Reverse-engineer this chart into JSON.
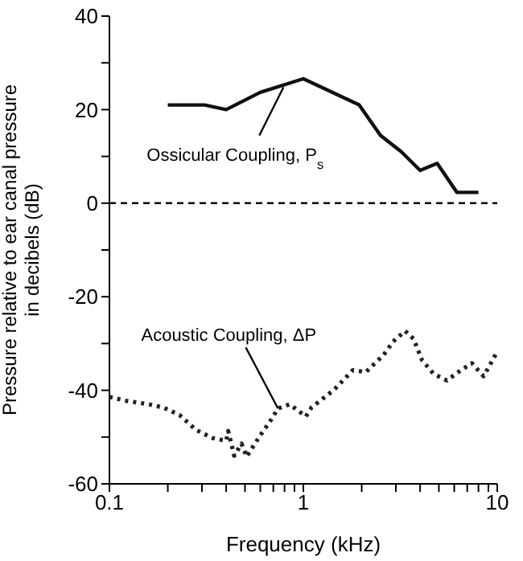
{
  "chart_data": {
    "type": "line",
    "xlabel": "Frequency (kHz)",
    "ylabel": "Pressure relative to ear canal pressure in decibels (dB)",
    "log": "x",
    "xlim": [
      0.1,
      10
    ],
    "ylim": [
      -60,
      40
    ],
    "xticks": [
      0.1,
      {
        "value": 0.2,
        "label": null
      },
      {
        "value": 0.3,
        "label": null
      },
      {
        "value": 0.4,
        "label": null
      },
      {
        "value": 0.5,
        "label": null
      },
      {
        "value": 0.6,
        "label": null
      },
      {
        "value": 0.7,
        "label": null
      },
      {
        "value": 0.8,
        "label": null
      },
      {
        "value": 0.9,
        "label": null
      },
      1,
      {
        "value": 2,
        "label": null
      },
      {
        "value": 3,
        "label": null
      },
      {
        "value": 4,
        "label": null
      },
      {
        "value": 5,
        "label": null
      },
      {
        "value": 6,
        "label": null
      },
      {
        "value": 7,
        "label": null
      },
      {
        "value": 8,
        "label": null
      },
      {
        "value": 9,
        "label": null
      },
      10
    ],
    "yticks": [
      -60,
      {
        "value": -50,
        "label": null
      },
      -40,
      {
        "value": -30,
        "label": null
      },
      -20,
      {
        "value": -10,
        "label": null
      },
      0,
      {
        "value": 10,
        "label": null
      },
      20,
      {
        "value": 30,
        "label": null
      },
      40
    ],
    "marker": "none",
    "ref_lines": [
      {
        "axis": "y",
        "value": 0,
        "label": null,
        "color": "#000000",
        "line_style": "dashed"
      }
    ],
    "series": [
      {
        "color": "#111111",
        "line_style": "solid",
        "x": [
          0.2,
          0.31,
          0.4,
          0.6,
          1.0,
          1.94,
          2.5,
          3.2,
          4,
          4.9,
          6.2,
          8
        ],
        "values": [
          21,
          21,
          20,
          23.7,
          26.6,
          21,
          14.5,
          11,
          7,
          8.5,
          2.3,
          2.3
        ]
      },
      {
        "color": "#222222",
        "line_style": "dotted",
        "x": [
          0.1,
          0.12,
          0.16,
          0.19,
          0.23,
          0.28,
          0.34,
          0.4,
          0.41,
          0.44,
          0.48,
          0.51,
          0.6,
          0.67,
          0.74,
          0.85,
          1.03,
          1.1,
          1.44,
          1.8,
          2.1,
          2.6,
          2.9,
          3.35,
          3.7,
          4.1,
          4.7,
          5.5,
          6.4,
          7.4,
          8.5,
          9.8
        ],
        "values": [
          -41.4,
          -42.2,
          -43,
          -43.7,
          -45.3,
          -48.5,
          -50.2,
          -50.8,
          -48.7,
          -54,
          -51.4,
          -54.2,
          -49.6,
          -46.8,
          -43.9,
          -43,
          -45.6,
          -43.7,
          -39.9,
          -35.7,
          -36.1,
          -32.4,
          -29.6,
          -27.3,
          -29,
          -33.6,
          -36.5,
          -37.9,
          -35.9,
          -34.2,
          -37,
          -32.4
        ]
      }
    ],
    "annotations": [
      {
        "text": "Ossicular Coupling, P$_{s}$",
        "x": 0.79,
        "y": 24.8
      },
      {
        "text": "Acoustic Coupling, ΔP",
        "x": 0.74,
        "y": -43.9
      }
    ]
  }
}
